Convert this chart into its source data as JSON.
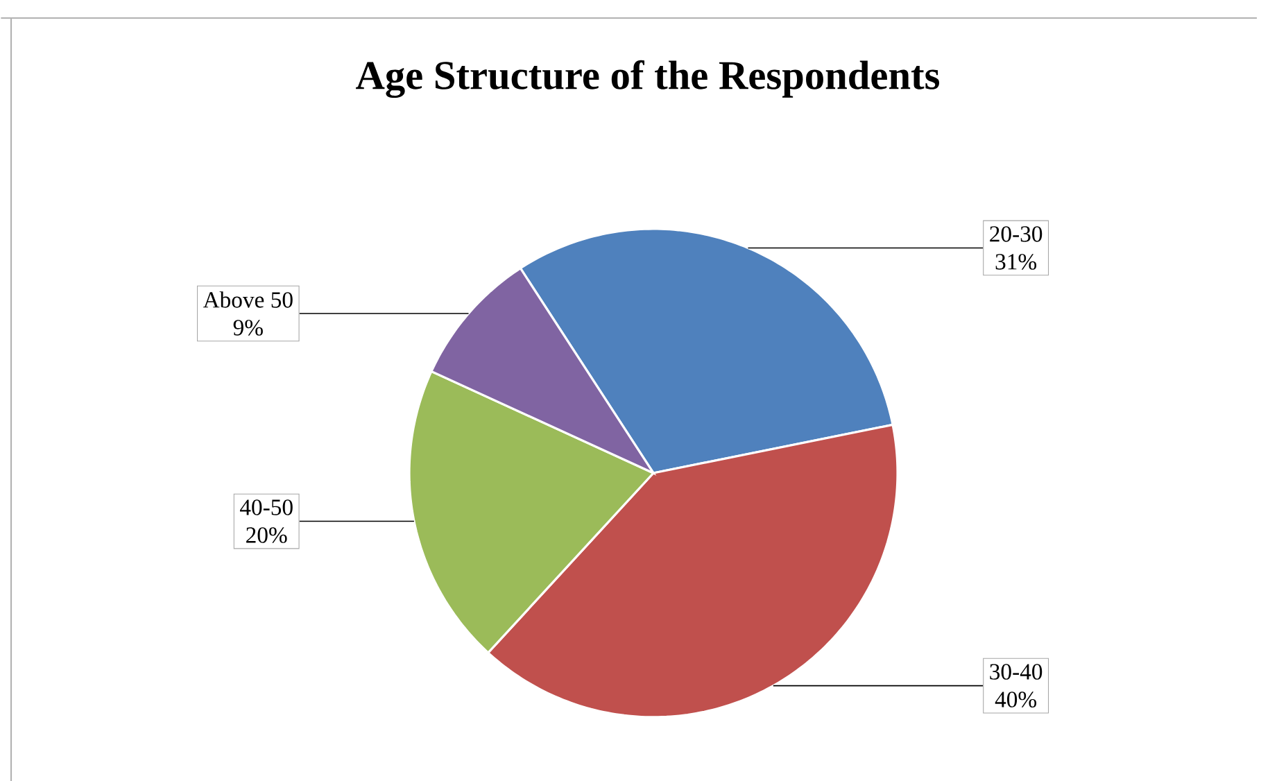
{
  "chart_data": {
    "type": "pie",
    "title": "Age Structure of the Respondents",
    "categories": [
      "20-30",
      "30-40",
      "40-50",
      "Above 50"
    ],
    "values": [
      31,
      40,
      20,
      9
    ],
    "colors": [
      "#4f81bd",
      "#c0504d",
      "#9bbb59",
      "#8064a2"
    ],
    "value_labels": [
      "31%",
      "40%",
      "20%",
      "9%"
    ]
  }
}
